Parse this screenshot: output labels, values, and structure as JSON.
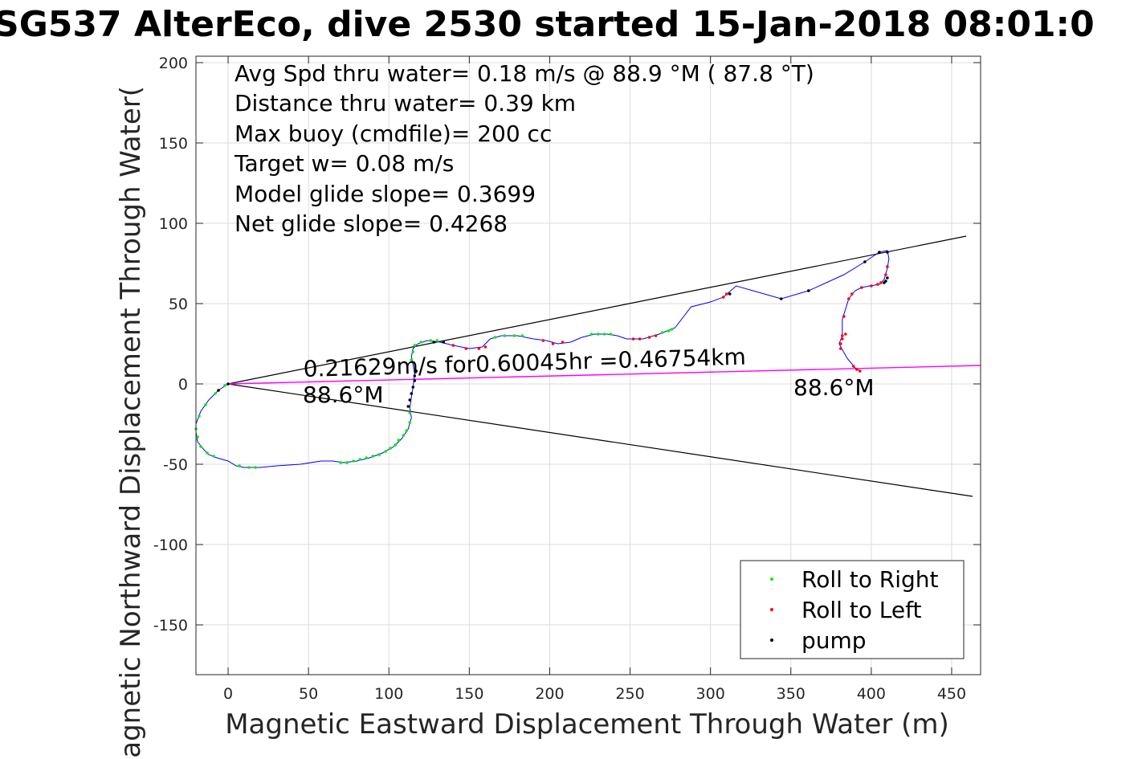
{
  "chart_data": {
    "type": "line",
    "title": "SG537 AlterEco, dive 2530 started 15-Jan-2018 08:01:0",
    "xlabel": "Magnetic Eastward Displacement Through Water (m)",
    "ylabel": "Magnetic Northward Displacement Through Water(",
    "xlim": [
      -20,
      468
    ],
    "ylim": [
      -181,
      204
    ],
    "xticks": [
      0,
      50,
      100,
      150,
      200,
      250,
      300,
      350,
      400,
      450
    ],
    "yticks": [
      -150,
      -100,
      -50,
      0,
      50,
      100,
      150,
      200
    ],
    "xtick_labels": [
      "0",
      "50",
      "100",
      "150",
      "200",
      "250",
      "300",
      "350",
      "400",
      "450"
    ],
    "ytick_labels": [
      "-150",
      "-100",
      "-50",
      "0",
      "50",
      "100",
      "150",
      "200"
    ],
    "grid": true,
    "legend_position": "bottom-right",
    "stats_text": [
      "Avg Spd thru water=  0.18 m/s @  88.9 °M ( 87.8 °T)",
      "Distance thru water=  0.39 km",
      "Max buoy (cmdfile)= 200 cc",
      "Target w= 0.08 m/s",
      "Model glide slope= 0.3699",
      "Net glide slope= 0.4268"
    ],
    "annotations": {
      "current": "0.21629m/s for0.60045hr =0.46754km",
      "heading_start": "88.6°M",
      "heading_end": "88.6°M"
    },
    "colors": {
      "track": "#0000ff",
      "roll_right": "#00ee00",
      "roll_left": "#ff0000",
      "pump": "#000000",
      "current_line": "#ff00ff",
      "glide_lines": "#000000"
    },
    "series": [
      {
        "name": "track",
        "points": [
          [
            0,
            0
          ],
          [
            -6,
            -4
          ],
          [
            -12,
            -10
          ],
          [
            -17,
            -17
          ],
          [
            -20,
            -25
          ],
          [
            -20,
            -30
          ],
          [
            -19,
            -36
          ],
          [
            -15,
            -41
          ],
          [
            -12,
            -44
          ],
          [
            -7,
            -46
          ],
          [
            0,
            -48
          ],
          [
            5,
            -51
          ],
          [
            10,
            -52
          ],
          [
            20,
            -52
          ],
          [
            30,
            -51
          ],
          [
            45,
            -50
          ],
          [
            58,
            -48
          ],
          [
            65,
            -48
          ],
          [
            72,
            -49
          ],
          [
            80,
            -48
          ],
          [
            88,
            -46
          ],
          [
            96,
            -43
          ],
          [
            103,
            -39
          ],
          [
            108,
            -34
          ],
          [
            112,
            -28
          ],
          [
            114,
            -21
          ],
          [
            113,
            -15
          ],
          [
            114,
            -8
          ],
          [
            115,
            -2
          ],
          [
            116,
            6
          ],
          [
            115,
            12
          ],
          [
            114,
            17
          ],
          [
            115,
            22
          ],
          [
            118,
            25
          ],
          [
            124,
            27
          ],
          [
            132,
            26
          ],
          [
            140,
            24
          ],
          [
            150,
            22
          ],
          [
            158,
            23
          ],
          [
            163,
            28
          ],
          [
            170,
            30
          ],
          [
            180,
            30
          ],
          [
            190,
            28
          ],
          [
            198,
            27
          ],
          [
            205,
            25
          ],
          [
            213,
            26
          ],
          [
            220,
            29
          ],
          [
            228,
            31
          ],
          [
            236,
            31
          ],
          [
            242,
            30
          ],
          [
            248,
            28
          ],
          [
            258,
            28
          ],
          [
            268,
            31
          ],
          [
            278,
            35
          ],
          [
            288,
            48
          ],
          [
            300,
            51
          ],
          [
            308,
            54
          ],
          [
            316,
            61
          ],
          [
            330,
            57
          ],
          [
            344,
            53
          ],
          [
            361,
            58
          ],
          [
            383,
            68
          ],
          [
            396,
            76
          ],
          [
            405,
            82
          ],
          [
            410,
            83
          ],
          [
            411,
            78
          ],
          [
            410,
            72
          ],
          [
            408,
            65
          ],
          [
            405,
            62
          ],
          [
            399,
            61
          ],
          [
            394,
            60
          ],
          [
            390,
            58
          ],
          [
            386,
            53
          ],
          [
            382,
            40
          ],
          [
            382,
            30
          ],
          [
            380,
            25
          ],
          [
            385,
            16
          ],
          [
            390,
            10
          ],
          [
            393,
            8
          ]
        ]
      },
      {
        "name": "Roll to Right",
        "points": [
          [
            -2,
            -1
          ],
          [
            -8,
            -6
          ],
          [
            -14,
            -13
          ],
          [
            -18,
            -20
          ],
          [
            -20,
            -28
          ],
          [
            -19,
            -33
          ],
          [
            -17,
            -39
          ],
          [
            -13,
            -43
          ],
          [
            -9,
            -45
          ],
          [
            7,
            -51
          ],
          [
            13,
            -52
          ],
          [
            17,
            -52
          ],
          [
            70,
            -49
          ],
          [
            74,
            -49
          ],
          [
            78,
            -48
          ],
          [
            82,
            -47
          ],
          [
            86,
            -46
          ],
          [
            90,
            -45
          ],
          [
            94,
            -44
          ],
          [
            98,
            -42
          ],
          [
            101,
            -40
          ],
          [
            104,
            -38
          ],
          [
            106,
            -35
          ],
          [
            109,
            -32
          ],
          [
            111,
            -29
          ],
          [
            113,
            -24
          ],
          [
            113,
            -18
          ],
          [
            114,
            15
          ],
          [
            115,
            20
          ],
          [
            116,
            24
          ],
          [
            120,
            26
          ],
          [
            126,
            27
          ],
          [
            130,
            27
          ],
          [
            166,
            29
          ],
          [
            172,
            30
          ],
          [
            178,
            30
          ],
          [
            183,
            30
          ],
          [
            226,
            31
          ],
          [
            230,
            31
          ],
          [
            234,
            31
          ],
          [
            238,
            31
          ],
          [
            270,
            32
          ],
          [
            274,
            33
          ],
          [
            276,
            34
          ]
        ]
      },
      {
        "name": "Roll to Left",
        "points": [
          [
            140,
            24
          ],
          [
            148,
            22
          ],
          [
            156,
            22
          ],
          [
            160,
            23
          ],
          [
            196,
            27
          ],
          [
            202,
            25
          ],
          [
            208,
            26
          ],
          [
            252,
            28
          ],
          [
            256,
            28
          ],
          [
            262,
            29
          ],
          [
            266,
            30
          ],
          [
            308,
            54
          ],
          [
            310,
            56
          ],
          [
            394,
            60
          ],
          [
            400,
            61
          ],
          [
            404,
            62
          ],
          [
            406,
            63
          ],
          [
            409,
            68
          ],
          [
            410,
            73
          ],
          [
            388,
            56
          ],
          [
            386,
            53
          ],
          [
            383,
            42
          ],
          [
            382,
            28
          ],
          [
            381,
            22
          ],
          [
            381,
            25
          ],
          [
            382,
            30
          ],
          [
            384,
            31
          ],
          [
            389,
            11
          ],
          [
            391,
            9
          ],
          [
            393,
            8
          ]
        ]
      },
      {
        "name": "pump",
        "points": [
          [
            0,
            0
          ],
          [
            -6,
            -4
          ],
          [
            117,
            8
          ],
          [
            116,
            5
          ],
          [
            116,
            2
          ],
          [
            115,
            -2
          ],
          [
            114,
            -6
          ],
          [
            113,
            -10
          ],
          [
            112,
            -14
          ],
          [
            128,
            26
          ],
          [
            134,
            26
          ],
          [
            312,
            56
          ],
          [
            344,
            53
          ],
          [
            361,
            58
          ],
          [
            396,
            76
          ],
          [
            405,
            82
          ],
          [
            410,
            82
          ],
          [
            410,
            66
          ],
          [
            409,
            64
          ],
          [
            408,
            63
          ]
        ]
      },
      {
        "name": "glide_line_upper",
        "points": [
          [
            0,
            0
          ],
          [
            459,
            92
          ]
        ]
      },
      {
        "name": "glide_line_lower",
        "points": [
          [
            0,
            0
          ],
          [
            463,
            -70
          ]
        ]
      },
      {
        "name": "current_line",
        "points": [
          [
            0,
            0
          ],
          [
            468,
            11.5
          ]
        ]
      }
    ],
    "legend": [
      {
        "label": "Roll to Right",
        "color": "#00ee00"
      },
      {
        "label": "Roll to Left",
        "color": "#ff0000"
      },
      {
        "label": "pump",
        "color": "#000000"
      }
    ]
  }
}
